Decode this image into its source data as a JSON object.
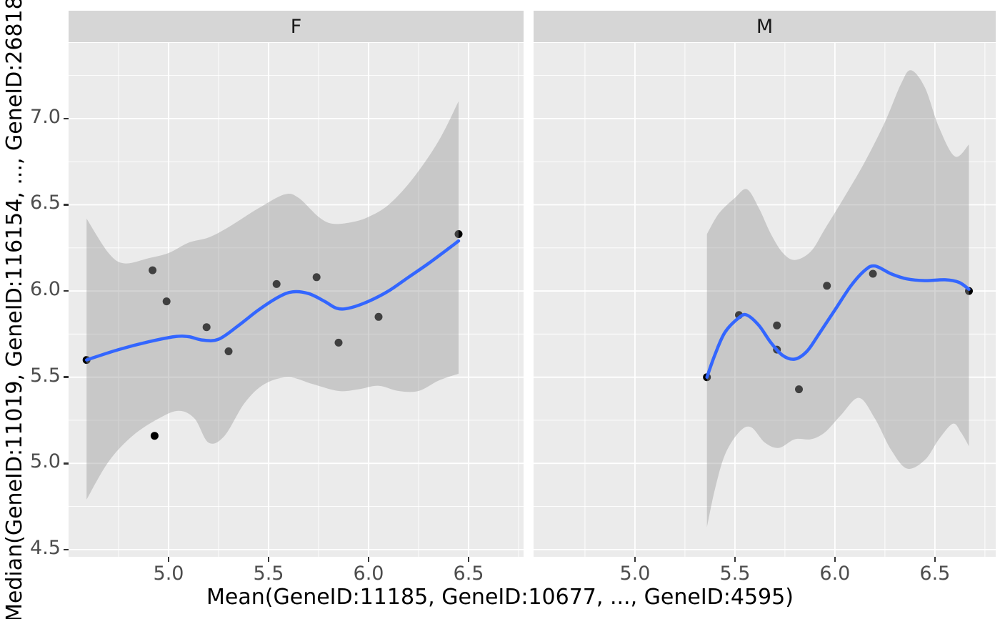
{
  "chart_data": {
    "type": "scatter",
    "title": "",
    "xlabel": "Mean(GeneID:11185, GeneID:10677, ..., GeneID:4595)",
    "ylabel": "Median(GeneID:11019, GeneID:116154, ..., GeneID:26818",
    "x_ticks": [
      5.0,
      5.5,
      6.0,
      6.5
    ],
    "x_tick_labels": [
      "5.0",
      "5.5",
      "6.0",
      "6.5"
    ],
    "x_minor_ticks": [
      4.75,
      5.25,
      5.75,
      6.25,
      6.75
    ],
    "y_ticks": [
      4.5,
      5.0,
      5.5,
      6.0,
      6.5,
      7.0
    ],
    "y_tick_labels": [
      "4.5",
      "5.0",
      "5.5",
      "6.0",
      "6.5",
      "7.0"
    ],
    "y_minor_ticks": [
      4.75,
      5.25,
      5.75,
      6.25,
      6.75,
      7.25
    ],
    "y_domain": [
      4.458,
      7.439
    ],
    "grid": "on",
    "legend": "none",
    "facets": [
      {
        "label": "F",
        "x_domain": [
          4.5,
          6.775
        ],
        "points": [
          [
            4.59,
            5.6
          ],
          [
            4.92,
            6.12
          ],
          [
            4.93,
            5.16
          ],
          [
            4.99,
            5.94
          ],
          [
            5.19,
            5.79
          ],
          [
            5.3,
            5.65
          ],
          [
            5.54,
            6.04
          ],
          [
            5.74,
            6.08
          ],
          [
            5.85,
            5.7
          ],
          [
            6.05,
            5.85
          ],
          [
            6.45,
            6.33
          ]
        ],
        "smooth_line": [
          [
            4.59,
            5.6
          ],
          [
            4.75,
            5.66
          ],
          [
            4.9,
            5.705
          ],
          [
            5.03,
            5.735
          ],
          [
            5.1,
            5.735
          ],
          [
            5.17,
            5.715
          ],
          [
            5.25,
            5.72
          ],
          [
            5.35,
            5.8
          ],
          [
            5.45,
            5.89
          ],
          [
            5.55,
            5.965
          ],
          [
            5.62,
            5.995
          ],
          [
            5.7,
            5.985
          ],
          [
            5.78,
            5.94
          ],
          [
            5.84,
            5.9
          ],
          [
            5.9,
            5.9
          ],
          [
            6.0,
            5.94
          ],
          [
            6.1,
            6.0
          ],
          [
            6.2,
            6.08
          ],
          [
            6.3,
            6.16
          ],
          [
            6.45,
            6.29
          ]
        ],
        "ribbon_upper": [
          [
            4.59,
            6.42
          ],
          [
            4.7,
            6.22
          ],
          [
            4.78,
            6.16
          ],
          [
            4.9,
            6.19
          ],
          [
            5.0,
            6.22
          ],
          [
            5.1,
            6.28
          ],
          [
            5.2,
            6.31
          ],
          [
            5.3,
            6.37
          ],
          [
            5.45,
            6.48
          ],
          [
            5.58,
            6.56
          ],
          [
            5.65,
            6.54
          ],
          [
            5.75,
            6.43
          ],
          [
            5.82,
            6.39
          ],
          [
            5.92,
            6.4
          ],
          [
            6.0,
            6.43
          ],
          [
            6.1,
            6.5
          ],
          [
            6.22,
            6.65
          ],
          [
            6.35,
            6.87
          ],
          [
            6.45,
            7.1
          ]
        ],
        "ribbon_lower": [
          [
            4.59,
            4.79
          ],
          [
            4.7,
            5.01
          ],
          [
            4.82,
            5.16
          ],
          [
            4.95,
            5.26
          ],
          [
            5.05,
            5.305
          ],
          [
            5.13,
            5.26
          ],
          [
            5.2,
            5.12
          ],
          [
            5.28,
            5.16
          ],
          [
            5.38,
            5.35
          ],
          [
            5.48,
            5.46
          ],
          [
            5.6,
            5.5
          ],
          [
            5.72,
            5.46
          ],
          [
            5.85,
            5.42
          ],
          [
            5.95,
            5.43
          ],
          [
            6.05,
            5.45
          ],
          [
            6.15,
            5.42
          ],
          [
            6.25,
            5.42
          ],
          [
            6.35,
            5.48
          ],
          [
            6.45,
            5.52
          ]
        ]
      },
      {
        "label": "M",
        "x_domain": [
          4.493,
          6.804
        ],
        "points": [
          [
            5.36,
            5.5
          ],
          [
            5.52,
            5.86
          ],
          [
            5.71,
            5.8
          ],
          [
            5.71,
            5.66
          ],
          [
            5.82,
            5.43
          ],
          [
            5.96,
            6.03
          ],
          [
            6.19,
            6.1
          ],
          [
            6.67,
            6.0
          ]
        ],
        "smooth_line": [
          [
            5.36,
            5.5
          ],
          [
            5.4,
            5.63
          ],
          [
            5.45,
            5.76
          ],
          [
            5.52,
            5.845
          ],
          [
            5.56,
            5.86
          ],
          [
            5.62,
            5.8
          ],
          [
            5.68,
            5.7
          ],
          [
            5.74,
            5.625
          ],
          [
            5.8,
            5.605
          ],
          [
            5.86,
            5.65
          ],
          [
            5.92,
            5.75
          ],
          [
            6.0,
            5.89
          ],
          [
            6.08,
            6.03
          ],
          [
            6.15,
            6.12
          ],
          [
            6.2,
            6.145
          ],
          [
            6.28,
            6.1
          ],
          [
            6.36,
            6.07
          ],
          [
            6.45,
            6.06
          ],
          [
            6.55,
            6.065
          ],
          [
            6.62,
            6.05
          ],
          [
            6.67,
            6.01
          ]
        ],
        "ribbon_upper": [
          [
            5.36,
            6.33
          ],
          [
            5.42,
            6.45
          ],
          [
            5.5,
            6.54
          ],
          [
            5.56,
            6.59
          ],
          [
            5.62,
            6.48
          ],
          [
            5.68,
            6.33
          ],
          [
            5.74,
            6.22
          ],
          [
            5.8,
            6.18
          ],
          [
            5.88,
            6.23
          ],
          [
            5.95,
            6.36
          ],
          [
            6.05,
            6.55
          ],
          [
            6.15,
            6.75
          ],
          [
            6.25,
            6.98
          ],
          [
            6.33,
            7.2
          ],
          [
            6.38,
            7.28
          ],
          [
            6.45,
            7.18
          ],
          [
            6.52,
            6.95
          ],
          [
            6.6,
            6.78
          ],
          [
            6.67,
            6.85
          ]
        ],
        "ribbon_lower": [
          [
            5.36,
            4.63
          ],
          [
            5.4,
            4.85
          ],
          [
            5.45,
            5.05
          ],
          [
            5.52,
            5.18
          ],
          [
            5.58,
            5.21
          ],
          [
            5.65,
            5.12
          ],
          [
            5.72,
            5.09
          ],
          [
            5.8,
            5.14
          ],
          [
            5.88,
            5.14
          ],
          [
            5.95,
            5.18
          ],
          [
            6.03,
            5.28
          ],
          [
            6.12,
            5.38
          ],
          [
            6.2,
            5.26
          ],
          [
            6.28,
            5.08
          ],
          [
            6.36,
            4.97
          ],
          [
            6.45,
            5.02
          ],
          [
            6.52,
            5.14
          ],
          [
            6.59,
            5.23
          ],
          [
            6.63,
            5.18
          ],
          [
            6.67,
            5.1
          ]
        ]
      }
    ],
    "style": {
      "panel_background": "#ebebeb",
      "strip_background": "#d6d6d6",
      "grid_major_color": "#ffffff",
      "grid_minor_color": "#ffffff",
      "ribbon_color": "#999999",
      "ribbon_opacity": 0.42,
      "line_color": "#3366ff",
      "point_color": "#000000",
      "tick_text_color": "#4d4d4d",
      "axis_title_color": "#000000",
      "tick_mark_color": "#333333"
    }
  }
}
